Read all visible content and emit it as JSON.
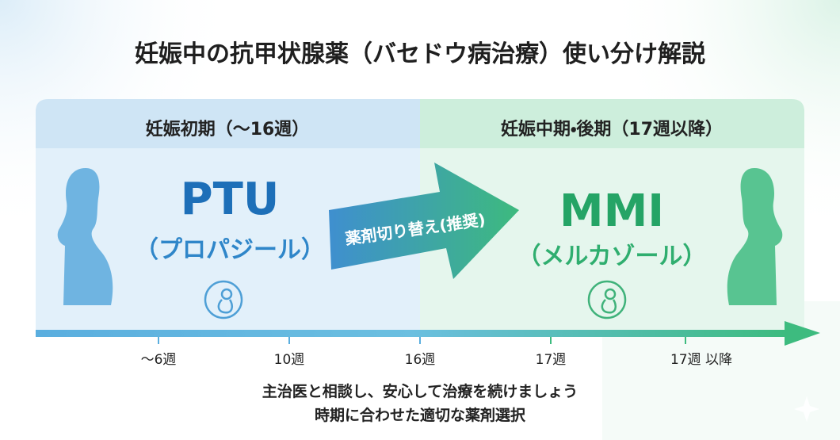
{
  "title": "妊娠中の抗甲状腺薬（バセドウ病治療）使い分け解説",
  "left": {
    "header": "妊娠初期（〜16週）",
    "drug": "PTU",
    "drug_name": "（プロパジール）"
  },
  "switch": "薬剤切り替え(推奨)",
  "right": {
    "header": "妊娠中期・後期（17週以降）",
    "drug": "MMI",
    "drug_name": "（メルカゾール）"
  },
  "timeline": {
    "labels": [
      "〜6週",
      "10週",
      "16週",
      "17週",
      "17週 以降"
    ]
  },
  "footer": {
    "lines": [
      "主治医と相談し、安心して治療を続けましょう",
      "時期に合わせた適切な薬剤選択"
    ]
  }
}
